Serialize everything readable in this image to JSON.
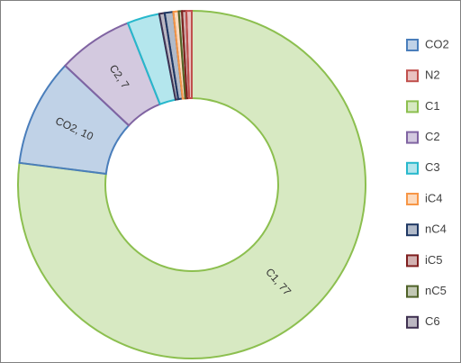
{
  "chart_data": {
    "type": "donut",
    "categories": [
      "CO2",
      "N2",
      "C1",
      "C2",
      "C3",
      "iC4",
      "nC4",
      "iC5",
      "nC5",
      "C6"
    ],
    "values": [
      10,
      0.5,
      77,
      7,
      3,
      0.5,
      0.8,
      0.4,
      0.3,
      0.5
    ],
    "value_labels": [
      "CO2, 10",
      null,
      "C1, 77",
      "C2, 7",
      null,
      null,
      null,
      null,
      null,
      null
    ],
    "colors": [
      "#4a7ebb",
      "#c0504d",
      "#8cbf4f",
      "#8064a2",
      "#27b8cc",
      "#f79646",
      "#1f3864",
      "#7f1f1f",
      "#4f6228",
      "#3f3151"
    ],
    "legend": "right"
  }
}
